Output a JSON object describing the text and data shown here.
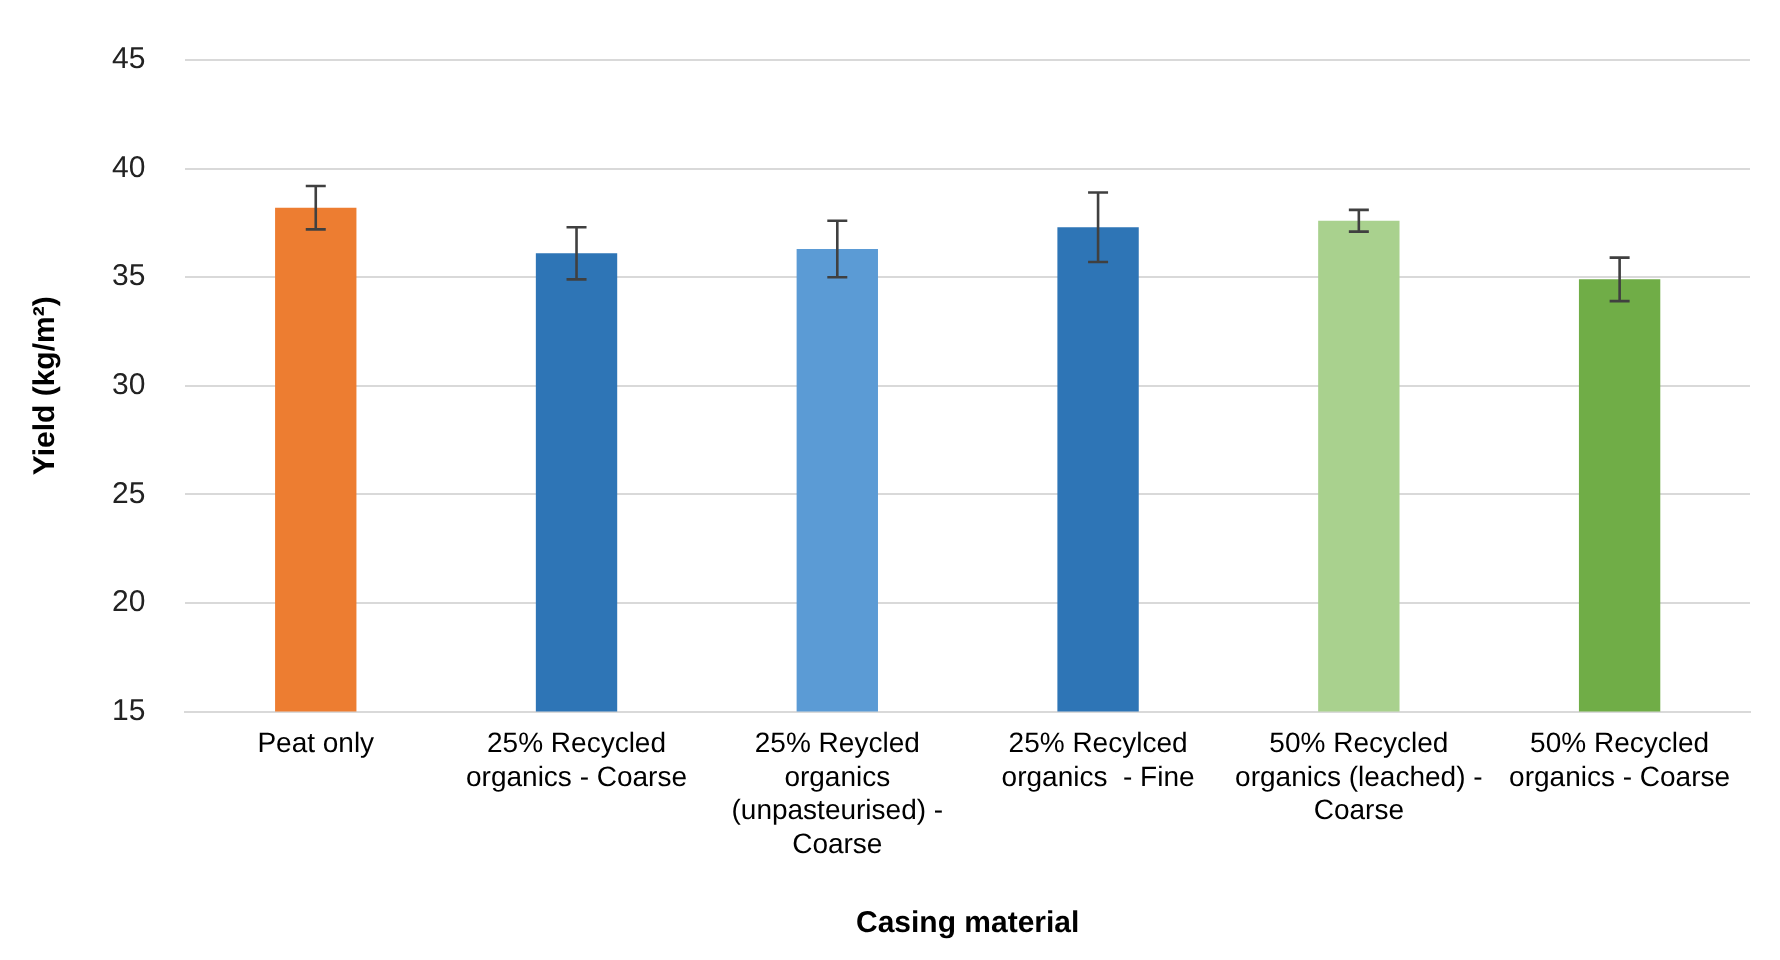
{
  "chart_data": {
    "type": "bar",
    "xlabel": "Casing material",
    "ylabel": "Yield (kg/m²)",
    "categories": [
      "Peat only",
      "25% Recycled organics - Coarse",
      "25% Reycled organics (unpasteurised) - Coarse",
      "25% Recylced organics  - Fine",
      "50% Recycled organics (leached) - Coarse",
      "50% Recycled organics - Coarse"
    ],
    "values": [
      38.2,
      36.1,
      36.3,
      37.3,
      37.6,
      34.9
    ],
    "errors": [
      1.0,
      1.2,
      1.3,
      1.6,
      0.5,
      1.0
    ],
    "colors": [
      "#ed7d31",
      "#2e75b6",
      "#5b9bd5",
      "#2e75b6",
      "#a9d18e",
      "#70ad47"
    ],
    "ylim": [
      15,
      45
    ],
    "yticks": [
      15,
      20,
      25,
      30,
      35,
      40,
      45
    ],
    "grid": "y",
    "legend": false
  }
}
